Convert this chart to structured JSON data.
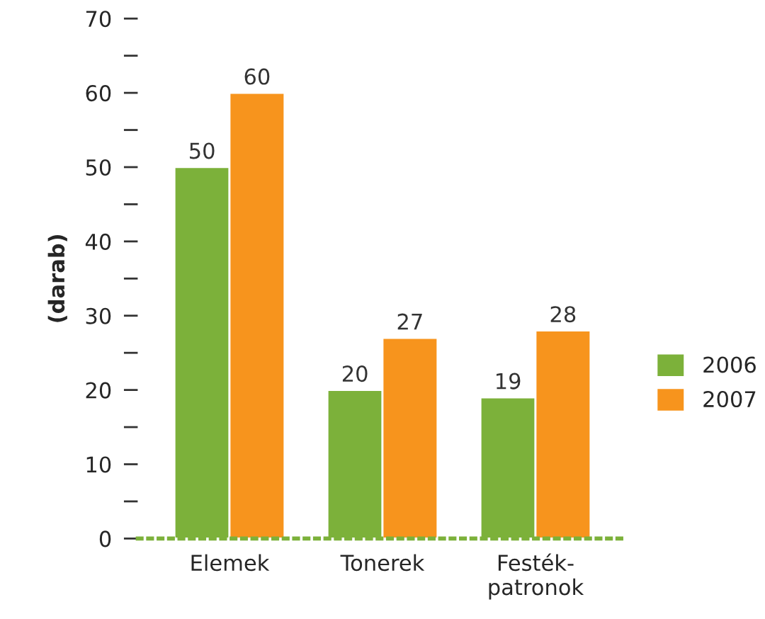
{
  "chart_data": {
    "type": "bar",
    "ylabel": "(darab)",
    "categories": [
      "Elemek",
      "Tonerek",
      "Festék-\npatronok"
    ],
    "series": [
      {
        "name": "2006",
        "color": "#7cb13a",
        "values": [
          50,
          20,
          19
        ]
      },
      {
        "name": "2007",
        "color": "#f7941d",
        "values": [
          60,
          27,
          28
        ]
      }
    ],
    "ylim": [
      0,
      70
    ],
    "yticks": [
      0,
      {
        "value": 5,
        "label": null
      },
      10,
      {
        "value": 15,
        "label": null
      },
      20,
      {
        "value": 25,
        "label": null
      },
      30,
      {
        "value": 35,
        "label": null
      },
      40,
      {
        "value": 45,
        "label": null
      },
      50,
      {
        "value": 55,
        "label": null
      },
      60,
      {
        "value": 65,
        "label": null
      },
      70
    ],
    "data_labels": true,
    "grid": false,
    "legend": "right"
  }
}
